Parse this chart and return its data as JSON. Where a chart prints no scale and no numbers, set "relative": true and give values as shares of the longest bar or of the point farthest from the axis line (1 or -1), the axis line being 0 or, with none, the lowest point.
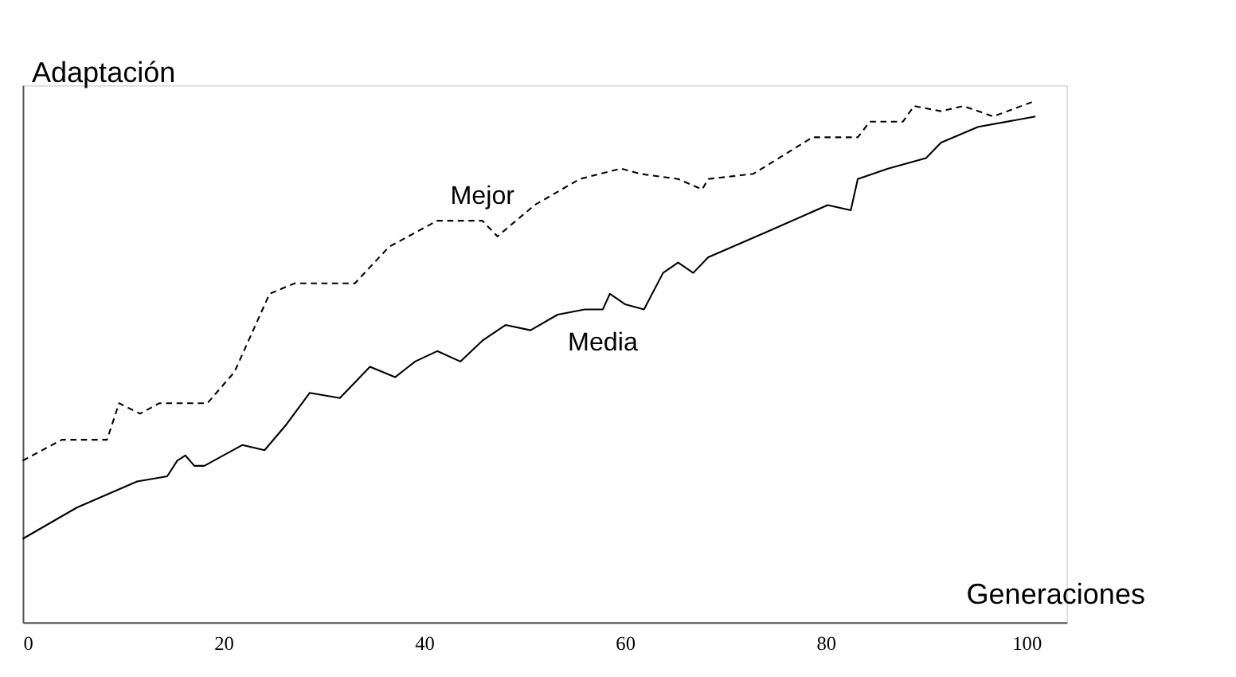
{
  "chart_data": {
    "type": "line",
    "relative": true,
    "xlabel": "Generaciones",
    "ylabel": "Adaptación",
    "xlim": [
      0,
      104
    ],
    "xticks": [
      0,
      20,
      40,
      60,
      80,
      100
    ],
    "grid": false,
    "legend": false,
    "tick_labels": "x",
    "marker": "none",
    "series": [
      {
        "name": "Mejor",
        "color": "#000000",
        "line_style": "dashed",
        "x": [
          0,
          3.9,
          8.4,
          9.6,
          11.7,
          13.6,
          18.4,
          21.1,
          24.6,
          27.1,
          33.1,
          36.5,
          41.3,
          45.8,
          47.3,
          51.0,
          55.5,
          59.6,
          61.5,
          65.3,
          67.7,
          68.3,
          72.8,
          78.7,
          83.2,
          84.4,
          87.7,
          88.8,
          91.5,
          93.7,
          96.7,
          100.9
        ],
        "values": [
          0.31,
          0.35,
          0.35,
          0.42,
          0.4,
          0.42,
          0.42,
          0.48,
          0.63,
          0.65,
          0.65,
          0.72,
          0.77,
          0.77,
          0.74,
          0.8,
          0.85,
          0.87,
          0.86,
          0.85,
          0.83,
          0.85,
          0.86,
          0.93,
          0.93,
          0.96,
          0.96,
          0.99,
          0.98,
          0.99,
          0.97,
          1
        ]
      },
      {
        "name": "Media",
        "color": "#000000",
        "line_style": "solid",
        "x": [
          0,
          5.4,
          11.4,
          14.4,
          15.4,
          16.2,
          17.1,
          18.1,
          21.9,
          24.1,
          26.3,
          28.6,
          31.6,
          34.6,
          37.1,
          39.1,
          41.3,
          43.6,
          45.8,
          48.1,
          50.6,
          53.3,
          56.0,
          57.8,
          58.5,
          60.0,
          61.9,
          63.8,
          65.3,
          66.8,
          68.3,
          74.3,
          80.2,
          82.5,
          83.2,
          86.2,
          90.0,
          91.5,
          95.2,
          100.9
        ],
        "values": [
          0.16,
          0.22,
          0.27,
          0.28,
          0.31,
          0.32,
          0.3,
          0.3,
          0.34,
          0.33,
          0.38,
          0.44,
          0.43,
          0.49,
          0.47,
          0.5,
          0.52,
          0.5,
          0.54,
          0.57,
          0.56,
          0.59,
          0.6,
          0.6,
          0.63,
          0.61,
          0.6,
          0.67,
          0.69,
          0.67,
          0.7,
          0.75,
          0.8,
          0.79,
          0.85,
          0.87,
          0.89,
          0.92,
          0.95,
          0.97
        ]
      }
    ]
  }
}
